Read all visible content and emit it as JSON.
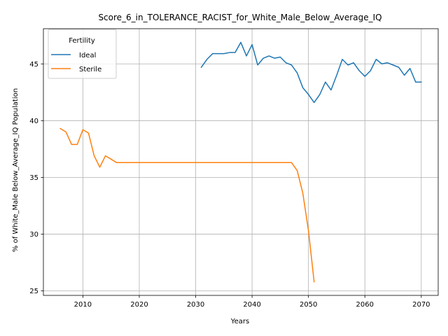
{
  "chart_data": {
    "type": "line",
    "title": "Score_6_in_TOLERANCE_RACIST_for_White_Male_Below_Average_IQ",
    "xlabel": "Years",
    "ylabel": "% of White_Male Below_Average_IQ Population",
    "xlim": [
      2003,
      2073
    ],
    "ylim": [
      24.6,
      48.1
    ],
    "xticks": [
      2010,
      2020,
      2030,
      2040,
      2050,
      2060,
      2070
    ],
    "yticks": [
      25,
      30,
      35,
      40,
      45
    ],
    "grid": true,
    "legend": {
      "title": "Fertility",
      "placement": "top-left"
    },
    "series": [
      {
        "name": "Ideal",
        "color": "#1f77b4",
        "x": [
          2031,
          2032,
          2033,
          2034,
          2035,
          2036,
          2037,
          2038,
          2039,
          2040,
          2041,
          2042,
          2043,
          2044,
          2045,
          2046,
          2047,
          2048,
          2049,
          2050,
          2051,
          2052,
          2053,
          2054,
          2055,
          2056,
          2057,
          2058,
          2059,
          2060,
          2061,
          2062,
          2063,
          2064,
          2065,
          2066,
          2067,
          2068,
          2069,
          2070
        ],
        "y": [
          44.7,
          45.4,
          45.9,
          45.9,
          45.9,
          46.0,
          46.0,
          46.9,
          45.7,
          46.7,
          44.9,
          45.5,
          45.7,
          45.5,
          45.6,
          45.1,
          44.9,
          44.2,
          42.9,
          42.3,
          41.6,
          42.3,
          43.4,
          42.7,
          44.0,
          45.4,
          44.9,
          45.1,
          44.4,
          43.9,
          44.4,
          45.4,
          45.0,
          45.1,
          44.9,
          44.7,
          44.0,
          44.6,
          43.4,
          43.4
        ]
      },
      {
        "name": "Sterile",
        "color": "#ff7f0e",
        "x": [
          2006,
          2007,
          2008,
          2009,
          2010,
          2011,
          2012,
          2013,
          2014,
          2015,
          2016,
          2017,
          2018,
          2019,
          2020,
          2021,
          2022,
          2023,
          2024,
          2025,
          2026,
          2027,
          2028,
          2029,
          2030,
          2031,
          2032,
          2033,
          2034,
          2035,
          2036,
          2037,
          2038,
          2039,
          2040,
          2041,
          2042,
          2043,
          2044,
          2045,
          2046,
          2047,
          2048,
          2049,
          2050,
          2051
        ],
        "y": [
          39.3,
          39.0,
          37.9,
          37.9,
          39.2,
          38.9,
          36.9,
          35.9,
          36.9,
          36.6,
          36.3,
          36.3,
          36.3,
          36.3,
          36.3,
          36.3,
          36.3,
          36.3,
          36.3,
          36.3,
          36.3,
          36.3,
          36.3,
          36.3,
          36.3,
          36.3,
          36.3,
          36.3,
          36.3,
          36.3,
          36.3,
          36.3,
          36.3,
          36.3,
          36.3,
          36.3,
          36.3,
          36.3,
          36.3,
          36.3,
          36.3,
          36.3,
          35.6,
          33.6,
          30.3,
          25.8
        ]
      }
    ]
  }
}
